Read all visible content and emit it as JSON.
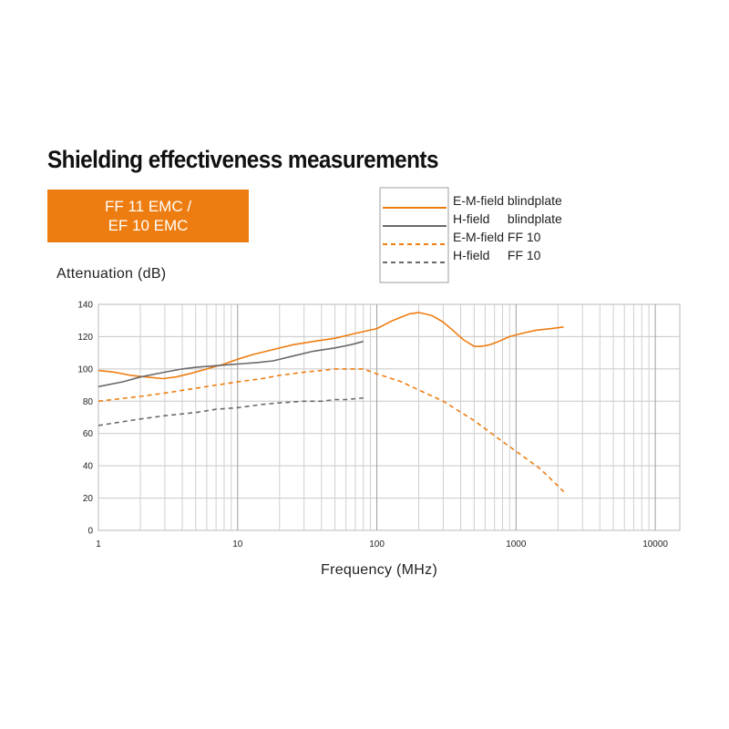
{
  "header": {
    "title": "Shielding effectiveness measurements",
    "badge_line1": "FF 11 EMC /",
    "badge_line2": "EF 10 EMC",
    "badge_color": "#ee7d11"
  },
  "chart_data": {
    "type": "line",
    "title": "Shielding effectiveness measurements",
    "xlabel": "Frequency (MHz)",
    "ylabel": "Attenuation (dB)",
    "x_scale": "log",
    "xlim": [
      1,
      15000
    ],
    "ylim": [
      0,
      140
    ],
    "x_ticks": [
      1,
      10,
      100,
      1000,
      10000
    ],
    "x_tick_labels": [
      "1",
      "10",
      "100",
      "1000",
      "10000"
    ],
    "y_ticks": [
      0,
      20,
      40,
      60,
      80,
      100,
      120,
      140
    ],
    "y_tick_labels": [
      "0",
      "20",
      "40",
      "60",
      "80",
      "100",
      "120",
      "140"
    ],
    "grid": true,
    "legend_position": "top-right",
    "series": [
      {
        "name": "E-M-field blindplate",
        "color": "#ee7d11",
        "dash": "solid",
        "x": [
          1,
          1.3,
          1.7,
          2.2,
          2.9,
          3.6,
          4.5,
          6,
          8,
          10,
          13,
          18,
          25,
          35,
          50,
          70,
          100,
          130,
          170,
          200,
          250,
          300,
          350,
          420,
          500,
          560,
          650,
          750,
          900,
          1100,
          1400,
          1800,
          2200
        ],
        "y": [
          99,
          98,
          96,
          95,
          94,
          95,
          97,
          100,
          103,
          106,
          109,
          112,
          115,
          117,
          119,
          122,
          125,
          130,
          134,
          135,
          133,
          129,
          124,
          118,
          114,
          114,
          115,
          117,
          120,
          122,
          124,
          125,
          126
        ]
      },
      {
        "name": "H-field     blindplate",
        "color": "#6a6a6a",
        "dash": "solid",
        "x": [
          1,
          1.5,
          2,
          3,
          4,
          5,
          7,
          10,
          14,
          18,
          25,
          35,
          50,
          65,
          80
        ],
        "y": [
          89,
          92,
          95,
          98,
          100,
          101,
          102,
          103,
          104,
          105,
          108,
          111,
          113,
          115,
          117
        ]
      },
      {
        "name": "E-M-field FF 10",
        "color": "#ee7d11",
        "dash": "dashed",
        "x": [
          1,
          2,
          3,
          5,
          7,
          10,
          15,
          20,
          30,
          40,
          50,
          60,
          80,
          100,
          150,
          200,
          300,
          500,
          800,
          1000,
          1500,
          2200
        ],
        "y": [
          80,
          83,
          85,
          88,
          90,
          92,
          94,
          96,
          98,
          99,
          100,
          100,
          100,
          97,
          92,
          87,
          80,
          68,
          55,
          49,
          38,
          24
        ]
      },
      {
        "name": "H-field     FF 10",
        "color": "#6a6a6a",
        "dash": "dashed",
        "x": [
          1,
          2,
          3,
          5,
          7,
          10,
          15,
          20,
          30,
          40,
          50,
          60,
          80
        ],
        "y": [
          65,
          69,
          71,
          73,
          75,
          76,
          78,
          79,
          80,
          80,
          81,
          81,
          82
        ]
      }
    ]
  }
}
